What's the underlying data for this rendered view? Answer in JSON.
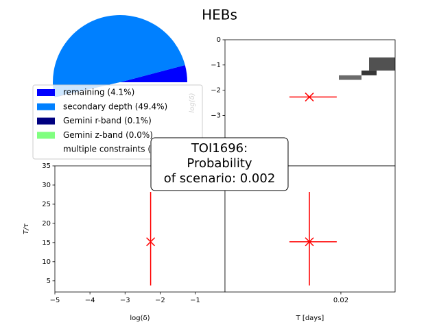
{
  "title": "HEBs",
  "annotation": [
    "TOI1696:",
    "Probability",
    "of scenario: 0.002"
  ],
  "chart_data": [
    {
      "type": "pie",
      "categories": [
        "remaining (4.1%)",
        "secondary depth (49.4%)",
        "Gemini r-band (0.1%)",
        "Gemini z-band (0.0%)",
        "multiple constraints (46.4%)"
      ],
      "values": [
        4.1,
        49.4,
        0.1,
        0.0,
        46.4
      ],
      "colors": [
        "#0000ff",
        "#0080ff",
        "#000080",
        "#80ff80",
        "#ffffff"
      ]
    },
    {
      "type": "scatter",
      "ylabel": "log(δ)",
      "x": [
        0.01704
      ],
      "y": [
        -2.27
      ],
      "xerr": [
        [
          0.00188
        ],
        [
          0.00257
        ]
      ],
      "color": "#ff0000",
      "xlim": [
        0.0091,
        0.0251
      ],
      "ylim": [
        -5,
        0
      ],
      "yticks": [
        0,
        {
          "value": -1,
          "label": "−1"
        },
        {
          "value": -2,
          "label": "−2"
        },
        {
          "value": -3,
          "label": "−3"
        },
        {
          "value": -4,
          "label": "−4"
        }
      ],
      "heatmap": [
        {
          "x": [
            0.02265,
            0.0251
          ],
          "y": [
            -1.22,
            -0.7
          ],
          "value": 0.8
        },
        {
          "x": [
            0.02194,
            0.02336
          ],
          "y": [
            -1.41,
            -1.22
          ],
          "value": 0.9
        },
        {
          "x": [
            0.01981,
            0.02194
          ],
          "y": [
            -1.59,
            -1.41
          ],
          "value": 0.7
        }
      ]
    },
    {
      "type": "scatter",
      "xlabel": "log(δ)",
      "ylabel": "T/τ",
      "x": [
        -2.27
      ],
      "y": [
        15.2
      ],
      "yerr": [
        [
          11.4
        ],
        [
          13
        ]
      ],
      "color": "#ff0000",
      "xlim": [
        -5,
        -0.15
      ],
      "ylim": [
        2.1,
        35
      ],
      "xticks": [
        {
          "value": -5,
          "label": "−5"
        },
        {
          "value": -4,
          "label": "−4"
        },
        {
          "value": -3,
          "label": "−3"
        },
        {
          "value": -2,
          "label": "−2"
        },
        {
          "value": -1,
          "label": "−1"
        }
      ],
      "yticks": [
        5,
        10,
        15,
        20,
        25,
        30,
        35
      ]
    },
    {
      "type": "scatter",
      "xlabel": "T [days]",
      "x": [
        0.01704
      ],
      "y": [
        15.2
      ],
      "xerr": [
        [
          0.00188
        ],
        [
          0.00257
        ]
      ],
      "yerr": [
        [
          11.4
        ],
        [
          13
        ]
      ],
      "color": "#ff0000",
      "xlim": [
        0.0091,
        0.0251
      ],
      "ylim": [
        2.1,
        35
      ],
      "xticks": [
        0.02
      ]
    }
  ]
}
